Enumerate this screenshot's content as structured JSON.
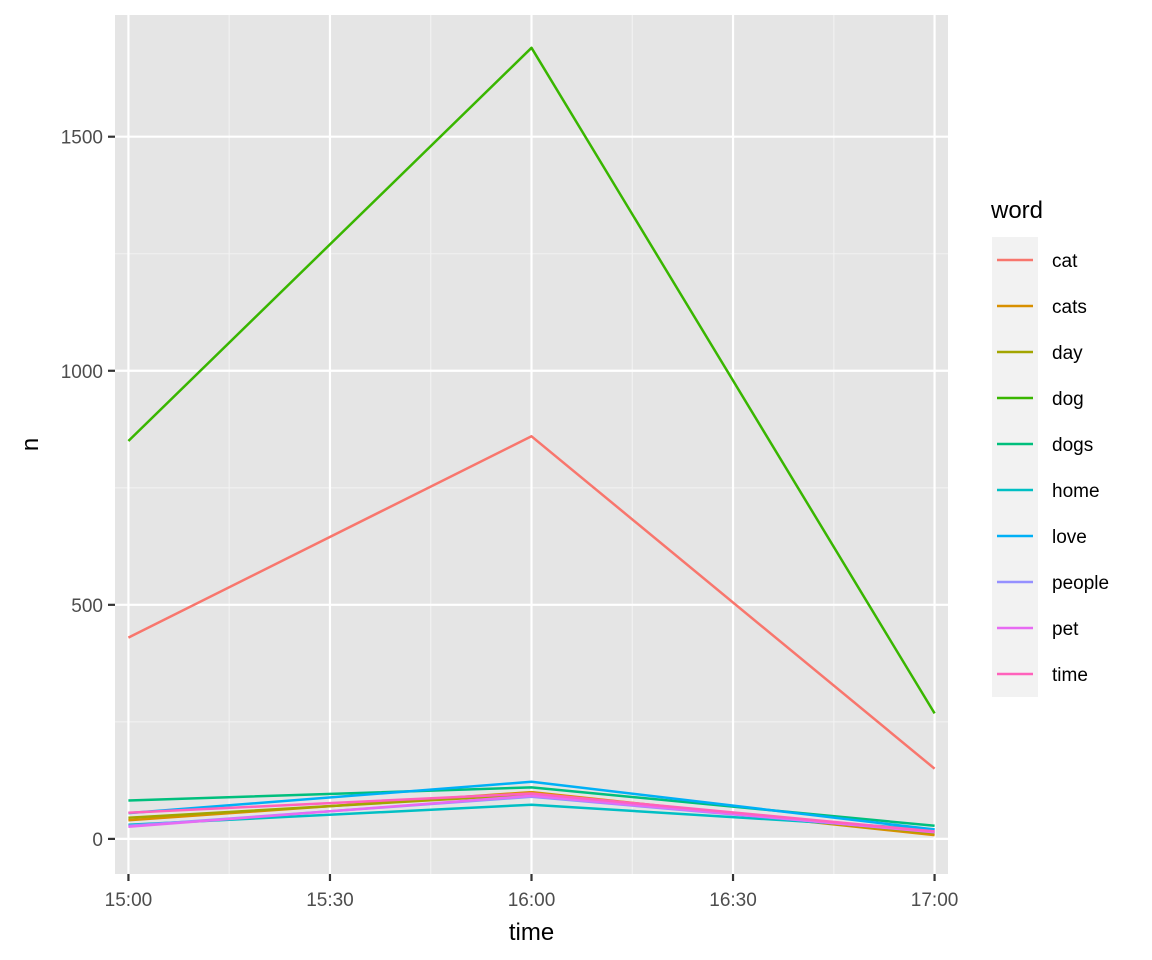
{
  "chart_data": {
    "type": "line",
    "xlabel": "time",
    "ylabel": "n",
    "x": [
      "15:00",
      "16:00",
      "17:00"
    ],
    "x_ticks": [
      "15:00",
      "15:30",
      "16:00",
      "16:30",
      "17:00"
    ],
    "xlim": [
      "14:58",
      "17:02"
    ],
    "ylim": [
      -75,
      1760
    ],
    "y_ticks": [
      0,
      500,
      1000,
      1500
    ],
    "y_tick_labels": [
      "0",
      "500",
      "1000",
      "1500"
    ],
    "grid": true,
    "background": "#e5e5e5",
    "legend": {
      "title": "word",
      "position": "right"
    },
    "series": [
      {
        "name": "cat",
        "color": "#F8766D",
        "values": [
          430,
          860,
          150
        ]
      },
      {
        "name": "cats",
        "color": "#D89000",
        "values": [
          40,
          100,
          8
        ]
      },
      {
        "name": "day",
        "color": "#A3A500",
        "values": [
          45,
          95,
          12
        ]
      },
      {
        "name": "dog",
        "color": "#39B600",
        "values": [
          850,
          1690,
          268
        ]
      },
      {
        "name": "dogs",
        "color": "#00BF7D",
        "values": [
          82,
          110,
          28
        ]
      },
      {
        "name": "home",
        "color": "#00BFC4",
        "values": [
          30,
          73,
          20
        ]
      },
      {
        "name": "love",
        "color": "#00B0F6",
        "values": [
          55,
          122,
          20
        ]
      },
      {
        "name": "people",
        "color": "#9590FF",
        "values": [
          28,
          90,
          15
        ]
      },
      {
        "name": "pet",
        "color": "#E76BF3",
        "values": [
          26,
          92,
          14
        ]
      },
      {
        "name": "time",
        "color": "#FF62BC",
        "values": [
          56,
          97,
          16
        ]
      }
    ]
  }
}
